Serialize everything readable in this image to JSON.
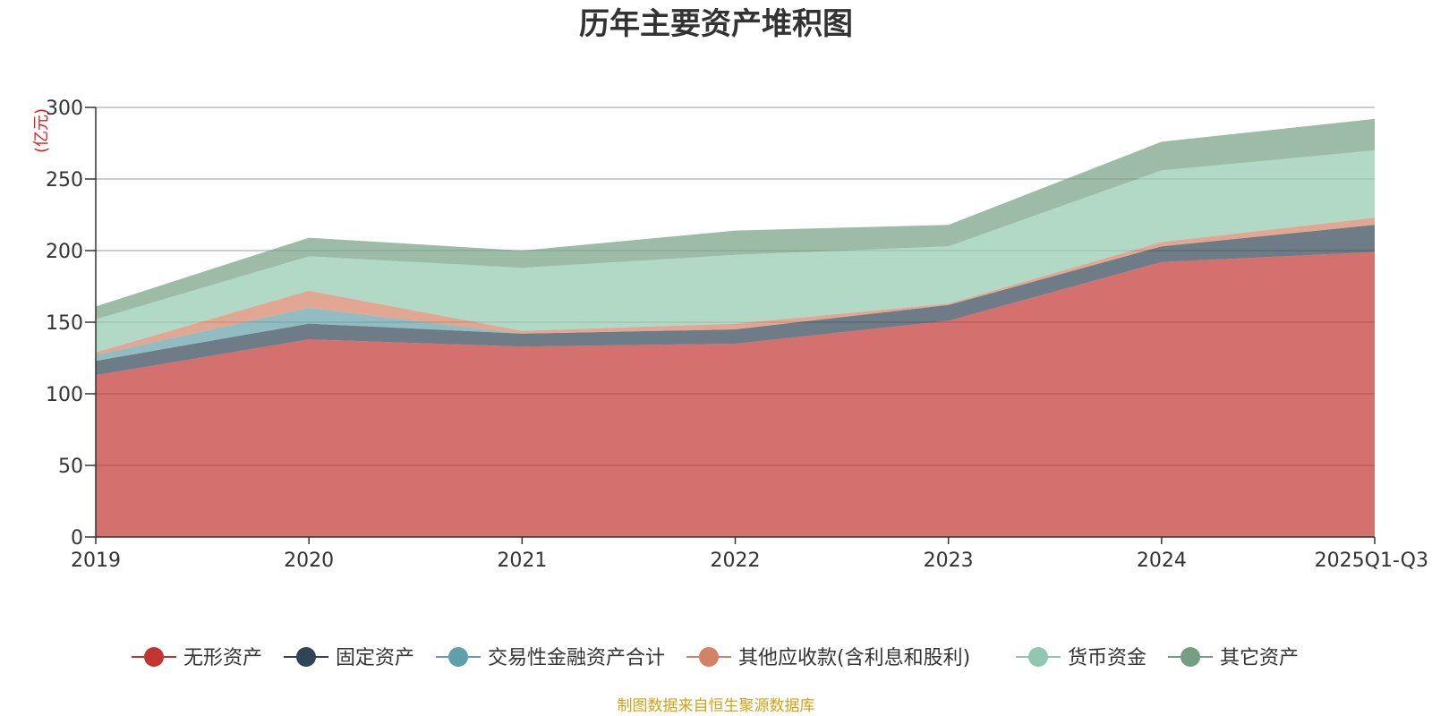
{
  "chart_data": {
    "type": "area",
    "stacked": true,
    "title": "历年主要资产堆积图",
    "unit_label": "(亿元)",
    "categories": [
      "2019",
      "2020",
      "2021",
      "2022",
      "2023",
      "2024",
      "2025Q1-Q3"
    ],
    "ylim": [
      0,
      300
    ],
    "yticks": [
      "0",
      "50",
      "100",
      "150",
      "200",
      "250",
      "300"
    ],
    "grid": true,
    "legend_position": "bottom",
    "series": [
      {
        "name": "无形资产",
        "color": "#c23531",
        "values": [
          113,
          138,
          133,
          135,
          151,
          192,
          199
        ]
      },
      {
        "name": "固定资产",
        "color": "#2f4554",
        "values": [
          10,
          11,
          9,
          10,
          11,
          11,
          19
        ]
      },
      {
        "name": "交易性金融资产合计",
        "color": "#61a0a8",
        "values": [
          4,
          11,
          0,
          0,
          0,
          0,
          0
        ]
      },
      {
        "name": "其他应收款(含利息和股利)",
        "color": "#d48265",
        "values": [
          2,
          12,
          2,
          4,
          1,
          3,
          5
        ]
      },
      {
        "name": "货币资金",
        "color": "#91c7ae",
        "values": [
          23,
          24,
          44,
          48,
          40,
          50,
          47
        ]
      },
      {
        "name": "其它资产",
        "color": "#749f83",
        "values": [
          9,
          13,
          12,
          17,
          15,
          20,
          22
        ]
      }
    ],
    "source": "制图数据来自恒生聚源数据库"
  }
}
